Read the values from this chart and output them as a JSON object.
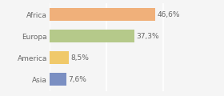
{
  "categories": [
    "Asia",
    "America",
    "Europa",
    "Africa"
  ],
  "values": [
    7.6,
    8.5,
    37.3,
    46.6
  ],
  "labels": [
    "7,6%",
    "8,5%",
    "37,3%",
    "46,6%"
  ],
  "bar_colors": [
    "#7b8fc2",
    "#f0c96a",
    "#b5c98a",
    "#f0b07a"
  ],
  "background_color": "#f5f5f5",
  "text_color": "#666666",
  "label_fontsize": 6.5,
  "tick_fontsize": 6.5,
  "bar_height": 0.6,
  "xlim": [
    0,
    65
  ],
  "grid_ticks": [
    0,
    25,
    50
  ],
  "grid_color": "#ffffff",
  "figsize": [
    2.8,
    1.2
  ],
  "dpi": 100
}
